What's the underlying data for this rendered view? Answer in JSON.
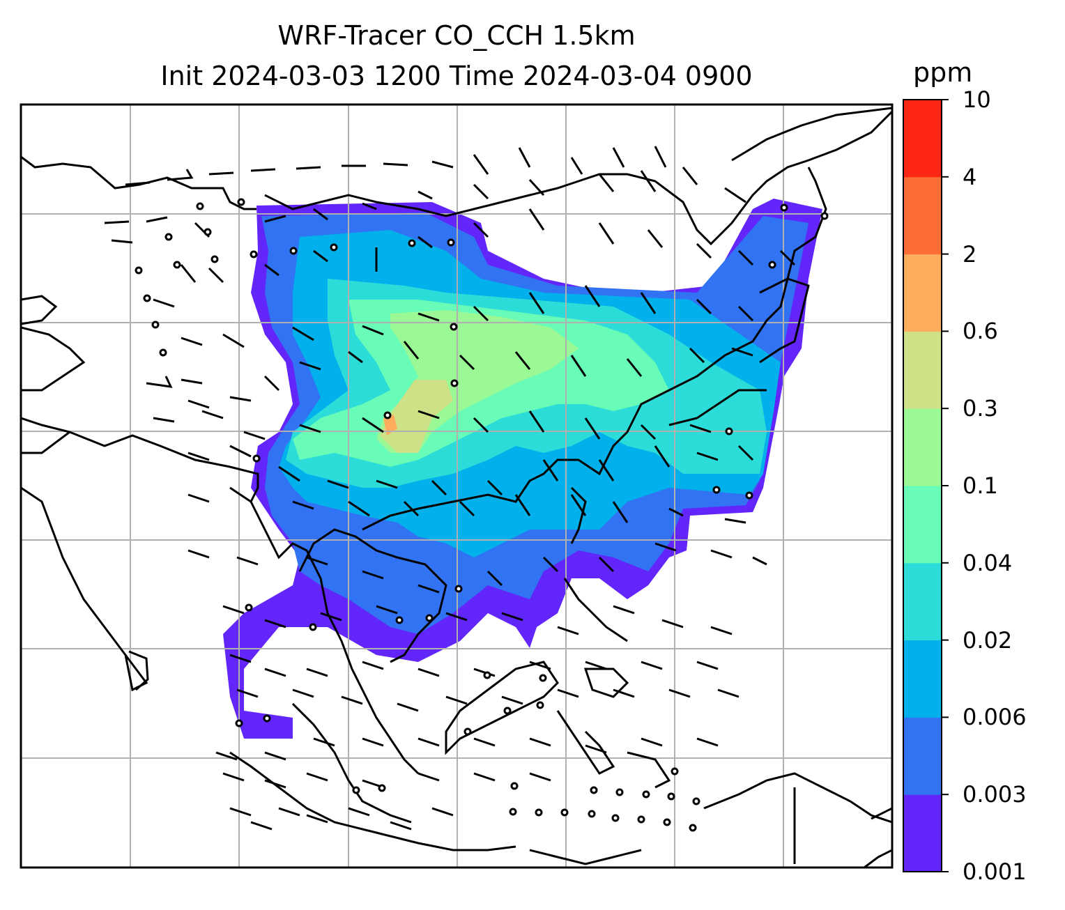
{
  "title": {
    "line1": "WRF-Tracer CO_CCH 1.5km",
    "line2": "Init 2024-03-03 1200 Time 2024-03-04 0900"
  },
  "colorbar": {
    "unit": "ppm",
    "ticks": [
      "0.001",
      "0.003",
      "0.006",
      "0.02",
      "0.04",
      "0.1",
      "0.3",
      "0.6",
      "2",
      "4",
      "10"
    ],
    "colors": [
      "#6226fa",
      "#3173f2",
      "#02b0eb",
      "#2cdcd8",
      "#69fbb8",
      "#9af995",
      "#cfe187",
      "#fdad5d",
      "#fd6d36",
      "#fe2716"
    ]
  },
  "map": {
    "gridlines": true,
    "coastline_color": "#000000",
    "gridline_color": "#b0b0b0"
  }
}
